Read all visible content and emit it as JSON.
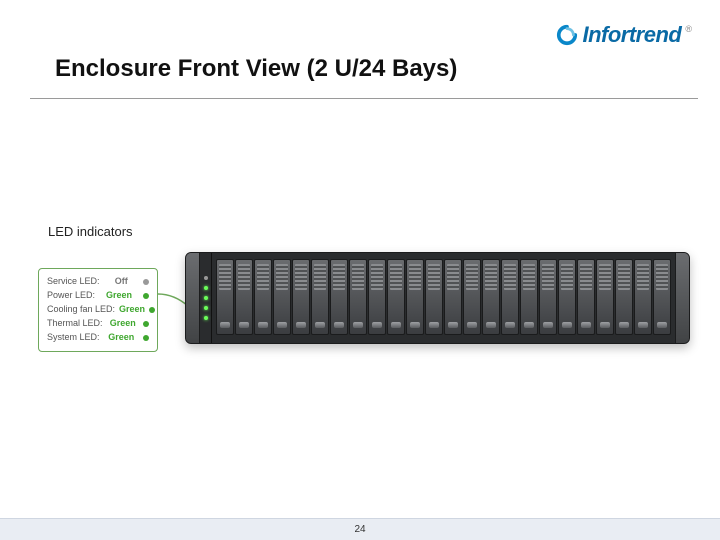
{
  "brand": {
    "name": "Infortrend",
    "reg": "®",
    "icon_color": "#0a87c9"
  },
  "title": "Enclosure Front View (2 U/24 Bays)",
  "led_section_label": "LED indicators",
  "enclosure": {
    "bay_count": 24
  },
  "callout": {
    "rows": [
      {
        "label": "Service LED:",
        "status": "Off",
        "status_class": "off",
        "dot_class": "off"
      },
      {
        "label": "Power LED:",
        "status": "Green",
        "status_class": "green",
        "dot_class": "green"
      },
      {
        "label": "Cooling fan LED:",
        "status": "Green",
        "status_class": "green",
        "dot_class": "green"
      },
      {
        "label": "Thermal LED:",
        "status": "Green",
        "status_class": "green",
        "dot_class": "green"
      },
      {
        "label": "System LED:",
        "status": "Green",
        "status_class": "green",
        "dot_class": "green"
      }
    ]
  },
  "colors": {
    "led_green": "#3fa72f",
    "led_off": "#999999",
    "brand_blue": "#0a6aa5",
    "footer_bg": "#e9edf3"
  },
  "page_number": "24"
}
